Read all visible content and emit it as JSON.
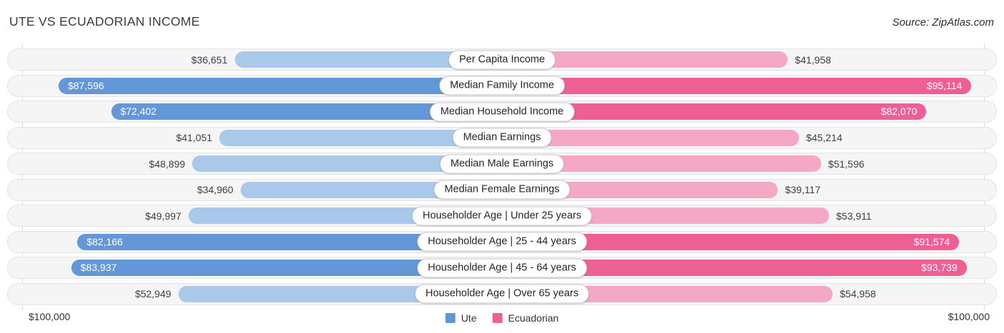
{
  "header": {
    "title": "UTE VS ECUADORIAN INCOME",
    "source": "Source: ZipAtlas.com"
  },
  "footer": {
    "left_axis_label": "$100,000",
    "right_axis_label": "$100,000",
    "legend": [
      {
        "label": "Ute",
        "color": "#5f97d8"
      },
      {
        "label": "Ecuadorian",
        "color": "#ee5f94"
      }
    ]
  },
  "colors": {
    "ute_dark": "#6397d7",
    "ute_light": "#a9c8ea",
    "ecuadorian_dark": "#ee5f94",
    "ecuadorian_light": "#f5a8c5",
    "track_bg": "#f5f5f6",
    "track_border": "#e3e3e5",
    "gridline": "#d9d9d9"
  },
  "chart_data": {
    "type": "bar",
    "variant": "bidirectional-tornado",
    "title": "UTE VS ECUADORIAN INCOME",
    "axis_max": 100000,
    "axis_max_label": "$100,000",
    "grid": "edge gridlines only, at $100,000 left and right",
    "legend_position": "bottom-center",
    "categories": [
      "Per Capita Income",
      "Median Family Income",
      "Median Household Income",
      "Median Earnings",
      "Median Male Earnings",
      "Median Female Earnings",
      "Householder Age | Under 25 years",
      "Householder Age | 25 - 44 years",
      "Householder Age | 45 - 64 years",
      "Householder Age | Over 65 years"
    ],
    "series": [
      {
        "name": "Ute",
        "side": "left",
        "values": [
          36651,
          87596,
          72402,
          41051,
          48899,
          34960,
          49997,
          82166,
          83937,
          52949
        ],
        "labels": [
          "$36,651",
          "$87,596",
          "$72,402",
          "$41,051",
          "$48,899",
          "$34,960",
          "$49,997",
          "$82,166",
          "$83,937",
          "$52,949"
        ]
      },
      {
        "name": "Ecuadorian",
        "side": "right",
        "values": [
          41958,
          95114,
          82070,
          45214,
          51596,
          39117,
          53911,
          91574,
          93739,
          54958
        ],
        "labels": [
          "$41,958",
          "$95,114",
          "$82,070",
          "$45,214",
          "$51,596",
          "$39,117",
          "$53,911",
          "$91,574",
          "$93,739",
          "$54,958"
        ]
      }
    ]
  }
}
